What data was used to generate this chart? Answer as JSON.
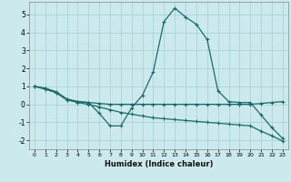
{
  "xlabel": "Humidex (Indice chaleur)",
  "bg_color": "#cce9ed",
  "grid_color": "#aad4d8",
  "line_color": "#1a6b6b",
  "xlim": [
    -0.5,
    23.5
  ],
  "ylim": [
    -2.5,
    5.7
  ],
  "xticks": [
    0,
    1,
    2,
    3,
    4,
    5,
    6,
    7,
    8,
    9,
    10,
    11,
    12,
    13,
    14,
    15,
    16,
    17,
    18,
    19,
    20,
    21,
    22,
    23
  ],
  "yticks": [
    -2,
    -1,
    0,
    1,
    2,
    3,
    4,
    5
  ],
  "line1_x": [
    0,
    1,
    2,
    3,
    4,
    5,
    6,
    7,
    8,
    9,
    10,
    11,
    12,
    13,
    14,
    15,
    16,
    17,
    18,
    19,
    20,
    21,
    22,
    23
  ],
  "line1_y": [
    1.0,
    0.9,
    0.7,
    0.3,
    0.15,
    0.1,
    -0.5,
    -1.2,
    -1.2,
    -0.2,
    0.5,
    1.8,
    4.6,
    5.35,
    4.85,
    4.45,
    3.6,
    0.75,
    0.15,
    0.1,
    0.1,
    -0.6,
    -1.3,
    -1.9
  ],
  "line2_x": [
    0,
    1,
    2,
    3,
    4,
    5,
    6,
    7,
    8,
    9,
    10,
    11,
    12,
    13,
    14,
    15,
    16,
    17,
    18,
    19,
    20,
    21,
    22,
    23
  ],
  "line2_y": [
    1.0,
    0.85,
    0.65,
    0.25,
    0.15,
    0.1,
    0.05,
    0.0,
    0.0,
    0.0,
    0.0,
    0.0,
    0.0,
    0.0,
    0.0,
    0.0,
    0.0,
    0.0,
    0.0,
    0.0,
    0.0,
    0.05,
    0.1,
    0.15
  ],
  "line3_x": [
    0,
    1,
    2,
    3,
    4,
    5,
    6,
    7,
    8,
    9,
    10,
    11,
    12,
    13,
    14,
    15,
    16,
    17,
    18,
    19,
    20,
    21,
    22,
    23
  ],
  "line3_y": [
    1.0,
    0.85,
    0.65,
    0.25,
    0.1,
    0.0,
    -0.15,
    -0.3,
    -0.45,
    -0.55,
    -0.65,
    -0.75,
    -0.8,
    -0.85,
    -0.9,
    -0.95,
    -1.0,
    -1.05,
    -1.1,
    -1.15,
    -1.2,
    -1.5,
    -1.75,
    -2.05
  ]
}
